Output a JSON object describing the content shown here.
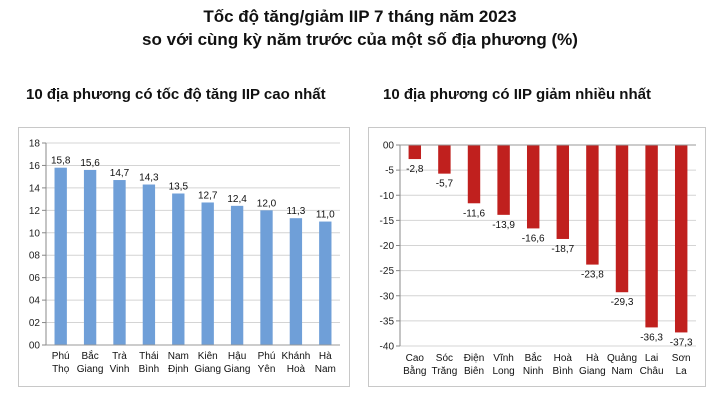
{
  "title_line1": "Tốc độ tăng/giảm IIP 7 tháng năm 2023",
  "title_line2": "so với cùng kỳ năm trước của một số địa phương (%)",
  "chart_data": [
    {
      "type": "bar",
      "title": "10 địa phương có tốc độ tăng IIP cao nhất",
      "categories": [
        [
          "Phú",
          "Thọ"
        ],
        [
          "Bắc",
          "Giang"
        ],
        [
          "Trà",
          "Vinh"
        ],
        [
          "Thái",
          "Bình"
        ],
        [
          "Nam",
          "Định"
        ],
        [
          "Kiên",
          "Giang"
        ],
        [
          "Hậu",
          "Giang"
        ],
        [
          "Phú",
          "Yên"
        ],
        [
          "Khánh",
          "Hoà"
        ],
        [
          "Hà",
          "Nam"
        ]
      ],
      "values": [
        15.8,
        15.6,
        14.7,
        14.3,
        13.5,
        12.7,
        12.4,
        12.0,
        11.3,
        11.0
      ],
      "value_labels": [
        "15,8",
        "15,6",
        "14,7",
        "14,3",
        "13,5",
        "12,7",
        "12,4",
        "12,0",
        "11,3",
        "11,0"
      ],
      "ylim": [
        0,
        18
      ],
      "yticks": [
        0,
        2,
        4,
        6,
        8,
        10,
        12,
        14,
        16,
        18
      ],
      "ytick_labels": [
        "00",
        "02",
        "04",
        "06",
        "08",
        "10",
        "12",
        "14",
        "16",
        "18"
      ],
      "grid": true,
      "color": "#6f9fd8"
    },
    {
      "type": "bar",
      "title": "10 địa phương có IIP giảm nhiều nhất",
      "categories": [
        [
          "Cao",
          "Bằng"
        ],
        [
          "Sóc",
          "Trăng"
        ],
        [
          "Điện",
          "Biên"
        ],
        [
          "Vĩnh",
          "Long"
        ],
        [
          "Bắc",
          "Ninh"
        ],
        [
          "Hoà",
          "Bình"
        ],
        [
          "Hà",
          "Giang"
        ],
        [
          "Quảng",
          "Nam"
        ],
        [
          "Lai",
          "Châu"
        ],
        [
          "Sơn",
          "La"
        ]
      ],
      "values": [
        -2.8,
        -5.7,
        -11.6,
        -13.9,
        -16.6,
        -18.7,
        -23.8,
        -29.3,
        -36.3,
        -37.3
      ],
      "value_labels": [
        "-2,8",
        "-5,7",
        "-11,6",
        "-13,9",
        "-16,6",
        "-18,7",
        "-23,8",
        "-29,3",
        "-36,3",
        "-37,3"
      ],
      "ylim": [
        -40,
        0
      ],
      "yticks": [
        0,
        -5,
        -10,
        -15,
        -20,
        -25,
        -30,
        -35,
        -40
      ],
      "ytick_labels": [
        "00",
        "-5",
        "-10",
        "-15",
        "-20",
        "-25",
        "-30",
        "-35",
        "-40"
      ],
      "grid": true,
      "color": "#c0201e"
    }
  ]
}
